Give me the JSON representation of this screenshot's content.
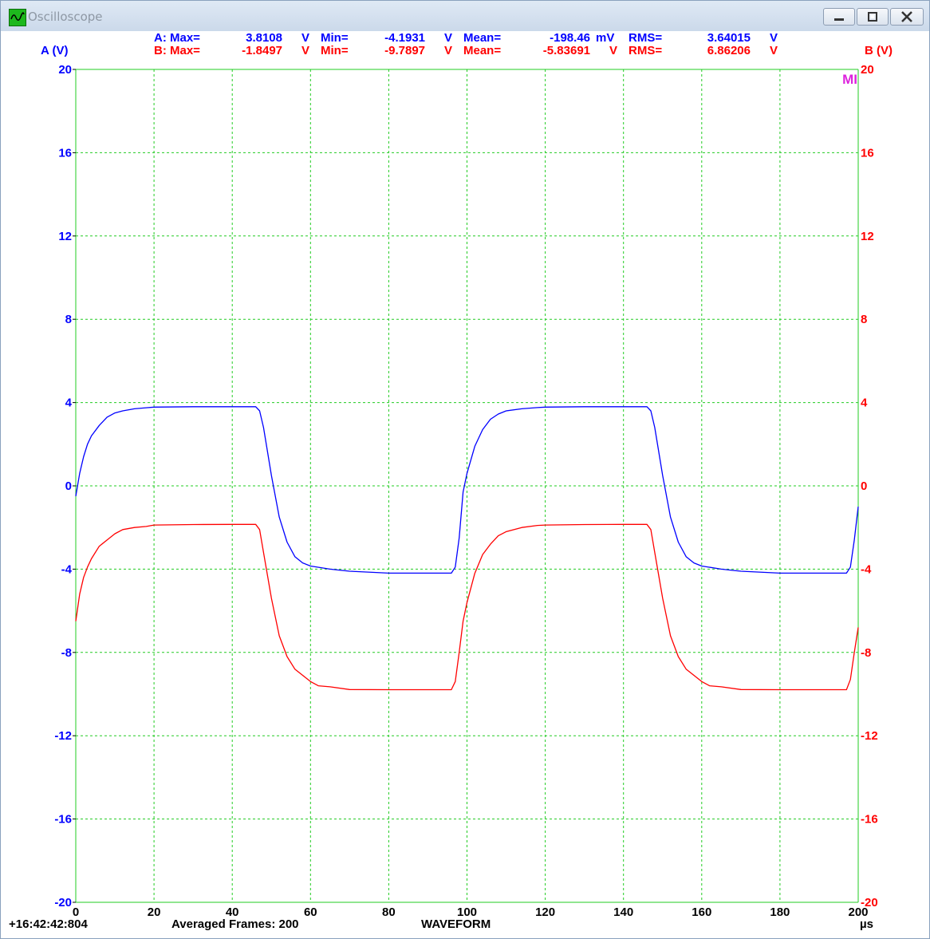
{
  "window": {
    "title": "Oscilloscope",
    "buttons": [
      "minimize",
      "maximize",
      "close"
    ]
  },
  "stats": {
    "a": {
      "label": "A: Max=",
      "max": "3.8108",
      "max_unit": "V",
      "min_label": "Min=",
      "min": "-4.1931",
      "min_unit": "V",
      "mean_label": "Mean=",
      "mean": "-198.46",
      "mean_unit": "mV",
      "rms_label": "RMS=",
      "rms": "3.64015",
      "rms_unit": "V"
    },
    "b": {
      "label": "B: Max=",
      "max": "-1.8497",
      "max_unit": "V",
      "min_label": "Min=",
      "min": "-9.7897",
      "min_unit": "V",
      "mean_label": "Mean=",
      "mean": "-5.83691",
      "mean_unit": "V",
      "rms_label": "RMS=",
      "rms": "6.86206",
      "rms_unit": "V"
    }
  },
  "marker": "MI",
  "footer": {
    "timestamp": "+16:42:42:804",
    "averaged": "Averaged Frames: 200",
    "mode": "WAVEFORM"
  },
  "colors": {
    "a": "#0000ff",
    "b": "#ff0000",
    "grid": "#22cc22",
    "marker": "#dd22dd"
  },
  "chart_data": {
    "type": "line",
    "xlabel": "µs",
    "ylabel_left": "A (V)",
    "ylabel_right": "B (V)",
    "xlim": [
      0,
      200
    ],
    "ylim": [
      -20,
      20
    ],
    "x_ticks": [
      "0",
      "20",
      "40",
      "60",
      "80",
      "100",
      "120",
      "140",
      "160",
      "180",
      "200"
    ],
    "y_ticks": [
      "20",
      "16",
      "12",
      "8",
      "4",
      "0",
      "-4",
      "-8",
      "-12",
      "-16",
      "-20"
    ],
    "grid": true,
    "series": [
      {
        "name": "A",
        "axis": "left",
        "color": "#0000ff",
        "points": [
          [
            0,
            -0.5
          ],
          [
            1,
            0.6
          ],
          [
            2,
            1.4
          ],
          [
            3,
            2.0
          ],
          [
            4,
            2.4
          ],
          [
            6,
            2.9
          ],
          [
            8,
            3.3
          ],
          [
            10,
            3.5
          ],
          [
            12,
            3.6
          ],
          [
            15,
            3.7
          ],
          [
            18,
            3.75
          ],
          [
            20,
            3.78
          ],
          [
            30,
            3.8
          ],
          [
            40,
            3.8
          ],
          [
            46,
            3.8
          ],
          [
            47,
            3.6
          ],
          [
            48,
            2.8
          ],
          [
            50,
            0.5
          ],
          [
            52,
            -1.5
          ],
          [
            54,
            -2.7
          ],
          [
            56,
            -3.4
          ],
          [
            58,
            -3.7
          ],
          [
            60,
            -3.85
          ],
          [
            65,
            -4.0
          ],
          [
            70,
            -4.1
          ],
          [
            80,
            -4.19
          ],
          [
            90,
            -4.19
          ],
          [
            96,
            -4.19
          ],
          [
            97,
            -3.9
          ],
          [
            98,
            -2.5
          ],
          [
            99,
            -0.3
          ],
          [
            100,
            0.6
          ],
          [
            102,
            1.9
          ],
          [
            104,
            2.7
          ],
          [
            106,
            3.2
          ],
          [
            108,
            3.45
          ],
          [
            110,
            3.6
          ],
          [
            114,
            3.7
          ],
          [
            118,
            3.76
          ],
          [
            120,
            3.78
          ],
          [
            130,
            3.8
          ],
          [
            140,
            3.8
          ],
          [
            146,
            3.8
          ],
          [
            147,
            3.6
          ],
          [
            148,
            2.8
          ],
          [
            150,
            0.5
          ],
          [
            152,
            -1.5
          ],
          [
            154,
            -2.7
          ],
          [
            156,
            -3.4
          ],
          [
            158,
            -3.7
          ],
          [
            160,
            -3.85
          ],
          [
            165,
            -4.0
          ],
          [
            170,
            -4.1
          ],
          [
            180,
            -4.19
          ],
          [
            190,
            -4.19
          ],
          [
            197,
            -4.19
          ],
          [
            198,
            -3.9
          ],
          [
            199,
            -2.6
          ],
          [
            200,
            -1.0
          ]
        ]
      },
      {
        "name": "B",
        "axis": "right",
        "color": "#ff0000",
        "points": [
          [
            0,
            -6.5
          ],
          [
            1,
            -5.2
          ],
          [
            2,
            -4.4
          ],
          [
            3,
            -3.9
          ],
          [
            4,
            -3.5
          ],
          [
            6,
            -2.9
          ],
          [
            8,
            -2.6
          ],
          [
            10,
            -2.3
          ],
          [
            12,
            -2.1
          ],
          [
            15,
            -2.0
          ],
          [
            18,
            -1.95
          ],
          [
            20,
            -1.88
          ],
          [
            30,
            -1.86
          ],
          [
            40,
            -1.85
          ],
          [
            46,
            -1.85
          ],
          [
            47,
            -2.1
          ],
          [
            48,
            -3.2
          ],
          [
            50,
            -5.4
          ],
          [
            52,
            -7.2
          ],
          [
            54,
            -8.2
          ],
          [
            56,
            -8.8
          ],
          [
            58,
            -9.1
          ],
          [
            60,
            -9.4
          ],
          [
            62,
            -9.6
          ],
          [
            65,
            -9.65
          ],
          [
            70,
            -9.78
          ],
          [
            80,
            -9.79
          ],
          [
            90,
            -9.79
          ],
          [
            96,
            -9.79
          ],
          [
            97,
            -9.4
          ],
          [
            98,
            -8.0
          ],
          [
            99,
            -6.5
          ],
          [
            100,
            -5.6
          ],
          [
            102,
            -4.2
          ],
          [
            104,
            -3.3
          ],
          [
            106,
            -2.8
          ],
          [
            108,
            -2.4
          ],
          [
            110,
            -2.2
          ],
          [
            114,
            -2.0
          ],
          [
            118,
            -1.9
          ],
          [
            120,
            -1.88
          ],
          [
            130,
            -1.86
          ],
          [
            140,
            -1.85
          ],
          [
            146,
            -1.85
          ],
          [
            147,
            -2.1
          ],
          [
            148,
            -3.2
          ],
          [
            150,
            -5.4
          ],
          [
            152,
            -7.2
          ],
          [
            154,
            -8.2
          ],
          [
            156,
            -8.8
          ],
          [
            158,
            -9.1
          ],
          [
            160,
            -9.4
          ],
          [
            162,
            -9.6
          ],
          [
            165,
            -9.65
          ],
          [
            170,
            -9.78
          ],
          [
            180,
            -9.79
          ],
          [
            190,
            -9.79
          ],
          [
            197,
            -9.79
          ],
          [
            198,
            -9.3
          ],
          [
            199,
            -8.0
          ],
          [
            200,
            -6.8
          ]
        ]
      }
    ]
  }
}
